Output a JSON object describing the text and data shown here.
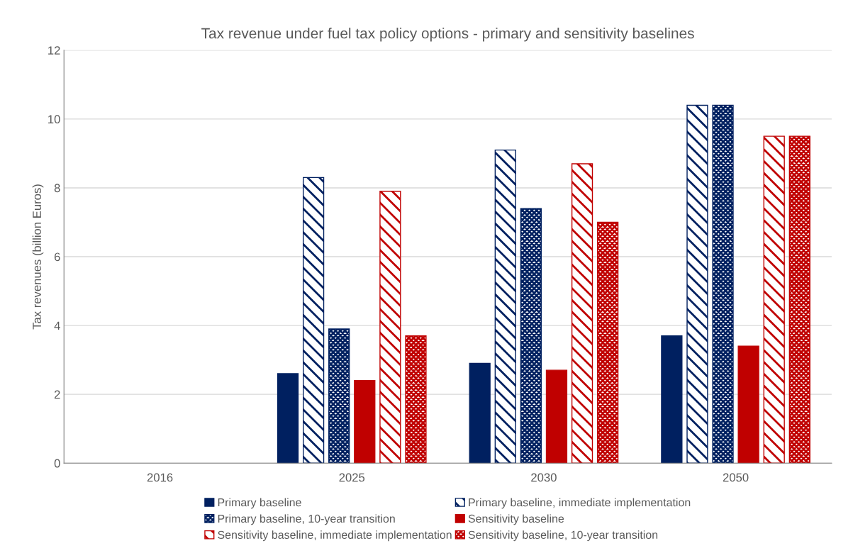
{
  "chart_data": {
    "type": "bar",
    "title": "Tax revenue under fuel tax policy options - primary and sensitivity baselines",
    "ylabel": "Tax revenues (billion Euros)",
    "categories": [
      "2016",
      "2025",
      "2030",
      "2050"
    ],
    "series": [
      {
        "name": "Primary baseline",
        "color": "#002060",
        "values": [
          null,
          2.6,
          2.9,
          3.7
        ]
      },
      {
        "name": "Primary baseline, immediate implementation",
        "color": "#002060",
        "values": [
          null,
          8.3,
          9.1,
          10.4
        ]
      },
      {
        "name": "Primary baseline, 10-year transition",
        "color": "#002060",
        "values": [
          null,
          3.9,
          7.4,
          10.4
        ]
      },
      {
        "name": "Sensitivity baseline",
        "color": "#c00000",
        "values": [
          null,
          2.4,
          2.7,
          3.4
        ]
      },
      {
        "name": "Sensitivity baseline, immediate implementation",
        "color": "#c00000",
        "values": [
          null,
          7.9,
          8.7,
          9.5
        ]
      },
      {
        "name": "Sensitivity baseline, 10-year transition",
        "color": "#c00000",
        "values": [
          null,
          3.7,
          7.0,
          9.5
        ]
      }
    ],
    "ylim": [
      0,
      12
    ],
    "yticks": [
      0,
      2,
      4,
      6,
      8,
      10,
      12
    ],
    "grid": "y",
    "legend": "bottom"
  }
}
